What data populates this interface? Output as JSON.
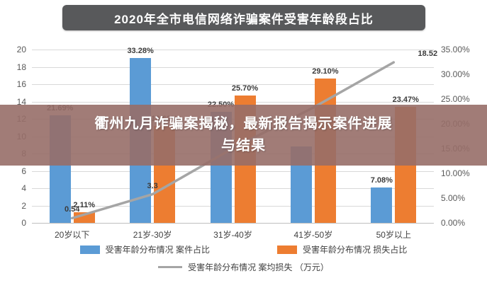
{
  "title": "2020年全市电信网络诈骗案件受害年龄段占比",
  "overlay": {
    "line1": "衢州九月诈骗案揭秘，最新报告揭示案件进展",
    "line2": "与结果"
  },
  "colors": {
    "cases_bar": "#5B9BD5",
    "loss_bar": "#ED7D31",
    "avg_line": "#A5A5A5",
    "title_bg": "#58595B",
    "overlay_bg": "rgba(151,110,104,0.9)",
    "gridline": "#D9D9D9"
  },
  "chart_data": {
    "type": "bar",
    "subtype": "grouped-bars-with-line",
    "title": "2020年全市电信网络诈骗案件受害年龄段占比",
    "categories": [
      "20岁以下",
      "21岁-30岁",
      "31岁-40岁",
      "41岁-50岁",
      "50岁以上"
    ],
    "series": [
      {
        "name": "受害年龄分布情况 案件占比",
        "type": "bar",
        "axis": "right",
        "color": "#5B9BD5",
        "values": [
          21.69,
          33.28,
          22.5,
          15.45,
          7.08
        ],
        "labels": [
          "21.69%",
          "33.28%",
          "22.50%",
          "",
          "7.08%"
        ]
      },
      {
        "name": "受害年龄分布情况 损失占比",
        "type": "bar",
        "axis": "right",
        "color": "#ED7D31",
        "values": [
          2.11,
          19.62,
          25.7,
          29.1,
          23.47
        ],
        "labels": [
          "2.11%",
          "19.62%",
          "25.70%",
          "29.10%",
          "23.47%"
        ]
      },
      {
        "name": "受害年龄分布情况 案均损失 （万元）",
        "type": "line",
        "axis": "left",
        "color": "#A5A5A5",
        "values": [
          0.54,
          3.3,
          8.6,
          13.3,
          18.52
        ],
        "labels": [
          "0.54",
          "3.3",
          "",
          "",
          "18.52"
        ]
      }
    ],
    "left_axis": {
      "min": 0,
      "max": 20,
      "step": 2,
      "ticks": [
        "20",
        "18",
        "16",
        "14",
        "12",
        "10",
        "8",
        "6",
        "4",
        "2",
        "0"
      ]
    },
    "right_axis": {
      "min": 0,
      "max": 35,
      "step": 5,
      "ticks": [
        "35.00%",
        "30.00%",
        "25.00%",
        "20.00%",
        "15.00%",
        "10.00%",
        "5.00%",
        "0.00%"
      ]
    },
    "grid": true,
    "legend_position": "bottom"
  }
}
